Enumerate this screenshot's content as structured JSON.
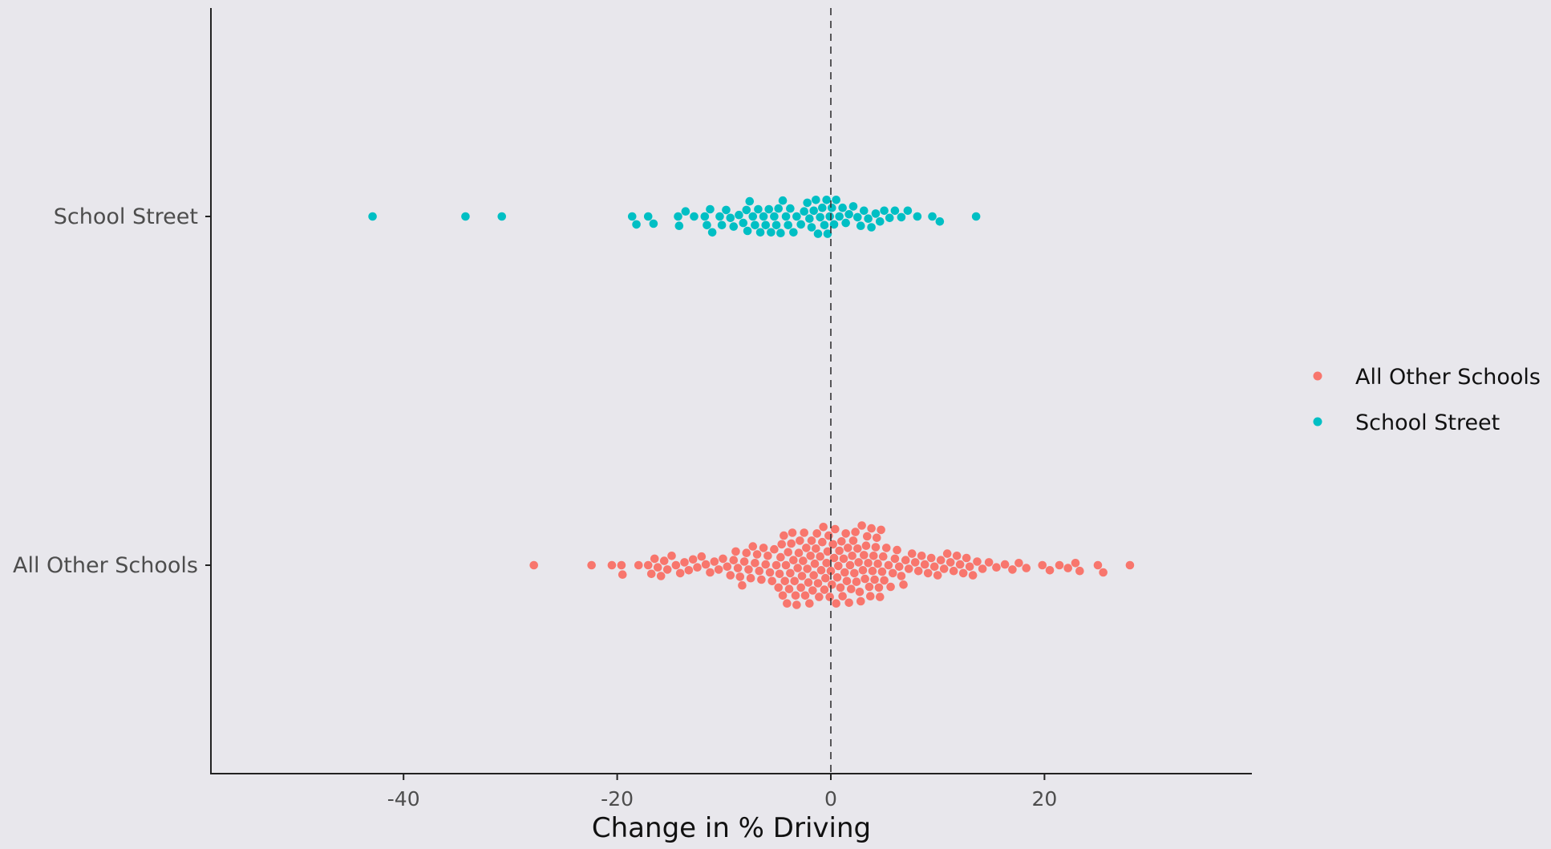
{
  "chart_data": {
    "type": "scatter",
    "subtype": "beeswarm",
    "title": "",
    "xlabel": "Change in % Driving",
    "ylabel": "",
    "xlim": [
      -46.5,
      31.5
    ],
    "x_ticks": [
      -40,
      -20,
      0,
      20
    ],
    "x_tick_labels": [
      "-40",
      "-20",
      "0",
      "20"
    ],
    "categories": [
      "School Street",
      "All Other Schools"
    ],
    "reference_line": {
      "x": 0,
      "style": "dashed"
    },
    "grid": false,
    "legend": {
      "placement": "right",
      "entries": [
        "All Other Schools",
        "School Street"
      ]
    },
    "series": [
      {
        "name": "School Street",
        "category": "School Street",
        "color": "#00BFC4",
        "values": [
          -42.9,
          -34.2,
          -30.8,
          -18.6,
          -18.2,
          -17.1,
          -16.6,
          -14.3,
          -14.2,
          -13.6,
          -12.8,
          -11.8,
          -11.6,
          -11.3,
          -11.1,
          -10.4,
          -10.2,
          -9.8,
          -9.4,
          -9.1,
          -8.6,
          -8.2,
          -7.9,
          -7.8,
          -7.6,
          -7.3,
          -7.1,
          -6.8,
          -6.6,
          -6.3,
          -6.1,
          -5.8,
          -5.6,
          -5.3,
          -5.1,
          -4.9,
          -4.7,
          -4.5,
          -4.2,
          -4.0,
          -3.8,
          -3.5,
          -3.2,
          -2.8,
          -2.5,
          -2.2,
          -2.0,
          -1.8,
          -1.6,
          -1.4,
          -1.2,
          -1.0,
          -0.8,
          -0.6,
          -0.4,
          -0.3,
          -0.1,
          0.1,
          0.3,
          0.5,
          0.8,
          1.1,
          1.4,
          1.7,
          2.1,
          2.5,
          2.8,
          3.1,
          3.5,
          3.8,
          4.2,
          4.6,
          5.0,
          5.5,
          6.0,
          6.6,
          7.2,
          8.1,
          9.5,
          10.2,
          13.6
        ]
      },
      {
        "name": "All Other Schools",
        "category": "All Other Schools",
        "color": "#F8766D",
        "values": [
          -27.8,
          -22.4,
          -20.5,
          -19.6,
          -19.5,
          -18.0,
          -17.1,
          -16.8,
          -16.5,
          -16.2,
          -15.9,
          -15.6,
          -15.3,
          -14.9,
          -14.5,
          -14.1,
          -13.7,
          -13.3,
          -12.9,
          -12.5,
          -12.1,
          -11.7,
          -11.3,
          -10.9,
          -10.5,
          -10.1,
          -9.7,
          -9.4,
          -9.1,
          -8.9,
          -8.7,
          -8.5,
          -8.3,
          -8.1,
          -7.9,
          -7.7,
          -7.5,
          -7.3,
          -7.1,
          -6.9,
          -6.7,
          -6.5,
          -6.3,
          -6.1,
          -5.9,
          -5.7,
          -5.5,
          -5.3,
          -5.1,
          -4.9,
          -4.8,
          -4.7,
          -4.6,
          -4.5,
          -4.4,
          -4.3,
          -4.2,
          -4.1,
          -4.0,
          -3.9,
          -3.8,
          -3.7,
          -3.6,
          -3.5,
          -3.4,
          -3.3,
          -3.2,
          -3.1,
          -3.0,
          -2.9,
          -2.8,
          -2.7,
          -2.6,
          -2.5,
          -2.4,
          -2.3,
          -2.2,
          -2.1,
          -2.0,
          -1.9,
          -1.8,
          -1.7,
          -1.6,
          -1.5,
          -1.4,
          -1.3,
          -1.2,
          -1.1,
          -1.0,
          -0.9,
          -0.8,
          -0.7,
          -0.6,
          -0.5,
          -0.4,
          -0.3,
          -0.2,
          -0.1,
          0.0,
          0.1,
          0.2,
          0.3,
          0.4,
          0.5,
          0.6,
          0.7,
          0.8,
          0.9,
          1.0,
          1.1,
          1.2,
          1.3,
          1.4,
          1.5,
          1.6,
          1.7,
          1.8,
          1.9,
          2.0,
          2.1,
          2.2,
          2.3,
          2.4,
          2.5,
          2.6,
          2.7,
          2.8,
          2.9,
          3.0,
          3.1,
          3.2,
          3.3,
          3.4,
          3.5,
          3.6,
          3.7,
          3.8,
          3.9,
          4.0,
          4.1,
          4.2,
          4.3,
          4.4,
          4.5,
          4.6,
          4.7,
          4.8,
          4.9,
          5.0,
          5.2,
          5.4,
          5.6,
          5.8,
          6.0,
          6.2,
          6.4,
          6.6,
          6.8,
          7.0,
          7.3,
          7.6,
          7.9,
          8.2,
          8.5,
          8.8,
          9.1,
          9.4,
          9.7,
          10.0,
          10.3,
          10.6,
          10.9,
          11.2,
          11.5,
          11.8,
          12.1,
          12.4,
          12.7,
          13.0,
          13.3,
          13.7,
          14.2,
          14.8,
          15.5,
          16.3,
          17.0,
          17.6,
          18.3,
          19.8,
          20.5,
          21.4,
          22.2,
          22.9,
          23.3,
          25.0,
          25.5,
          28.0
        ]
      }
    ]
  }
}
